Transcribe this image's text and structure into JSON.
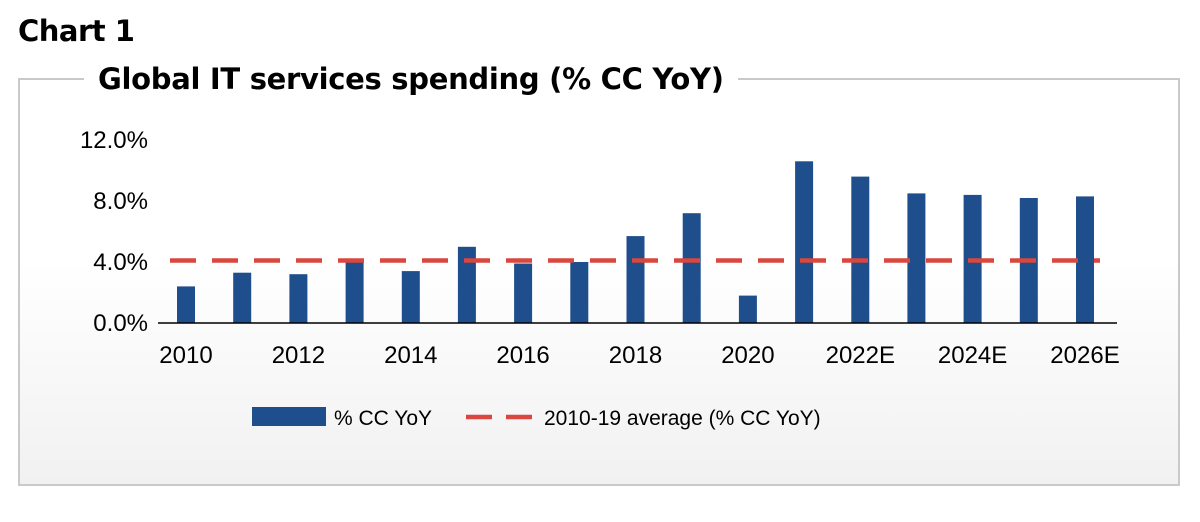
{
  "header": {
    "chart_label": "Chart 1",
    "chart_title": "Global IT services spending (% CC YoY)"
  },
  "colors": {
    "bar": "#1f4e8c",
    "average_line": "#d9473f",
    "panel_border": "#c9c9c9"
  },
  "chart_data": {
    "type": "bar",
    "title": "Global IT services spending (% CC YoY)",
    "xlabel": "",
    "ylabel": "",
    "categories": [
      "2010",
      "2011",
      "2012",
      "2013",
      "2014",
      "2015",
      "2016",
      "2017",
      "2018",
      "2019",
      "2020",
      "2021",
      "2022E",
      "2023E",
      "2024E",
      "2025E",
      "2026E"
    ],
    "x_tick_labels": [
      "2010",
      "2012",
      "2014",
      "2016",
      "2018",
      "2020",
      "2022E",
      "2024E",
      "2026E"
    ],
    "y_ticks": [
      0.0,
      4.0,
      8.0,
      12.0
    ],
    "y_tick_labels": [
      "0.0%",
      "4.0%",
      "8.0%",
      "12.0%"
    ],
    "ylim": [
      0,
      12
    ],
    "series": [
      {
        "name": "% CC YoY",
        "type": "bar",
        "values": [
          2.4,
          3.3,
          3.2,
          4.0,
          3.4,
          5.0,
          3.9,
          4.0,
          5.7,
          7.2,
          1.8,
          10.6,
          9.6,
          8.5,
          8.4,
          8.2,
          8.3
        ]
      },
      {
        "name": "2010-19 average (% CC YoY)",
        "type": "line",
        "style": "dashed",
        "values": [
          4.1,
          4.1,
          4.1,
          4.1,
          4.1,
          4.1,
          4.1,
          4.1,
          4.1,
          4.1,
          4.1,
          4.1,
          4.1,
          4.1,
          4.1,
          4.1,
          4.1
        ]
      }
    ],
    "grid": false,
    "legend_position": "bottom-center"
  }
}
